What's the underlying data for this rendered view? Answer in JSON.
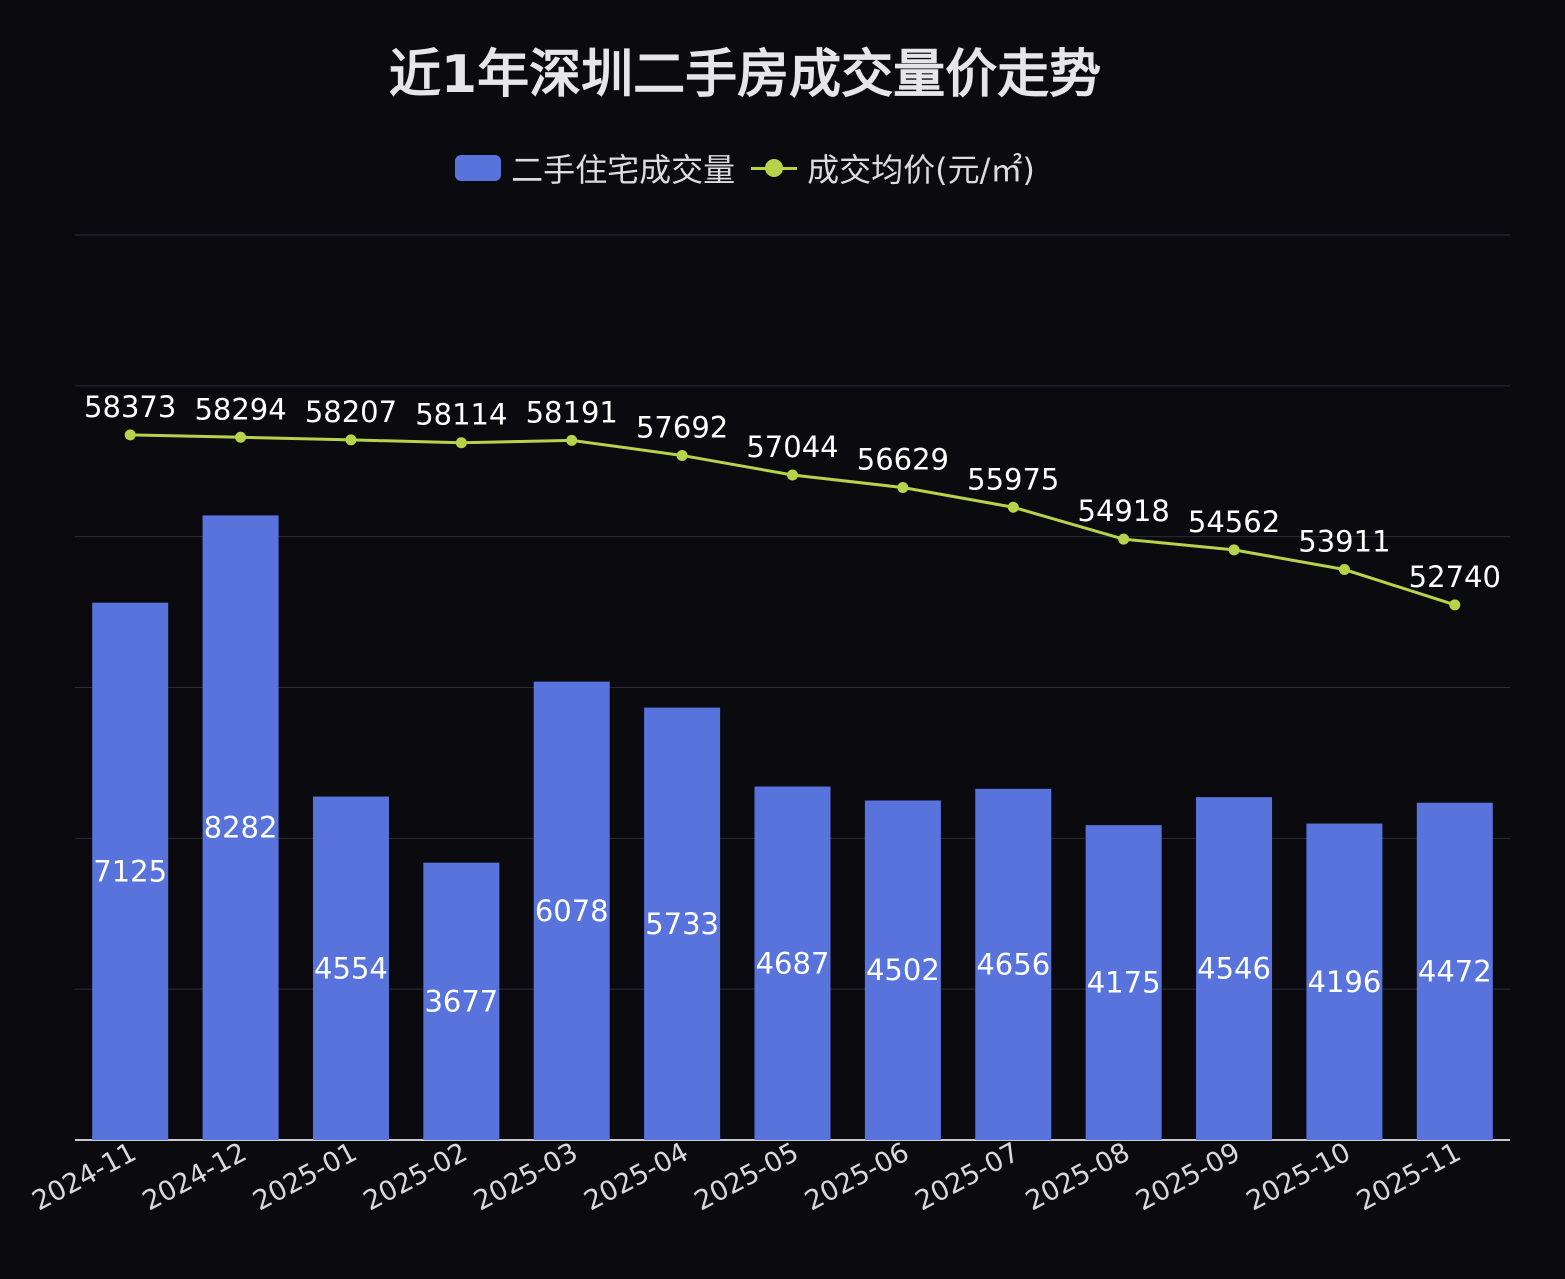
{
  "chart_data": {
    "type": "bar+line",
    "title": "近1年深圳二手房成交量价走势",
    "categories": [
      "2024-11",
      "2024-12",
      "2025-01",
      "2025-02",
      "2025-03",
      "2025-04",
      "2025-05",
      "2025-06",
      "2025-07",
      "2025-08",
      "2025-09",
      "2025-10",
      "2025-11"
    ],
    "series": [
      {
        "name": "二手住宅成交量",
        "type": "bar",
        "color": "#5873dc",
        "axis": "left",
        "values": [
          7125,
          8282,
          4554,
          3677,
          6078,
          5733,
          4687,
          4502,
          4656,
          4175,
          4546,
          4196,
          4472
        ]
      },
      {
        "name": "成交均价(元/㎡)",
        "type": "line",
        "color": "#b8d24a",
        "axis": "right",
        "values": [
          58373,
          58294,
          58207,
          58114,
          58191,
          57692,
          57044,
          56629,
          55975,
          54918,
          54562,
          53911,
          52740
        ]
      }
    ],
    "y_left_range": [
      0,
      12000
    ],
    "y_right_range": [
      35000,
      65000
    ],
    "y_axis_labels_shown": false,
    "grid": true,
    "legend_position": "top",
    "data_labels": true,
    "background": "#0a0a0f"
  }
}
